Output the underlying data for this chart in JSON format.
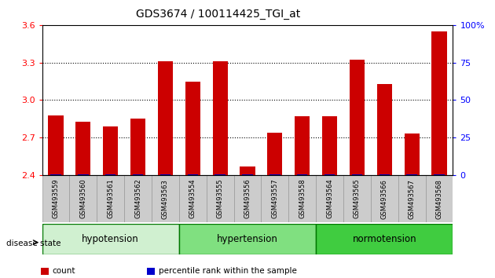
{
  "title": "GDS3674 / 100114425_TGI_at",
  "categories": [
    "GSM493559",
    "GSM493560",
    "GSM493561",
    "GSM493562",
    "GSM493563",
    "GSM493554",
    "GSM493555",
    "GSM493556",
    "GSM493557",
    "GSM493558",
    "GSM493564",
    "GSM493565",
    "GSM493566",
    "GSM493567",
    "GSM493568"
  ],
  "red_values": [
    2.88,
    2.83,
    2.79,
    2.85,
    3.31,
    3.15,
    3.31,
    2.47,
    2.74,
    2.87,
    2.87,
    3.32,
    3.13,
    2.73,
    3.55
  ],
  "blue_values": [
    0,
    0,
    0,
    0,
    0,
    0,
    0,
    0,
    0,
    0,
    0,
    0,
    0,
    0,
    0
  ],
  "ylim_left": [
    2.4,
    3.6
  ],
  "ylim_right": [
    0,
    100
  ],
  "yticks_left": [
    2.4,
    2.7,
    3.0,
    3.3,
    3.6
  ],
  "yticks_right": [
    0,
    25,
    50,
    75,
    100
  ],
  "ytick_labels_right": [
    "0",
    "25",
    "50",
    "75",
    "100%"
  ],
  "groups": [
    {
      "label": "hypotension",
      "start": 0,
      "end": 5,
      "color": "#d0f0d0"
    },
    {
      "label": "hypertension",
      "start": 5,
      "end": 10,
      "color": "#80e080"
    },
    {
      "label": "normotension",
      "start": 10,
      "end": 15,
      "color": "#40cc40"
    }
  ],
  "disease_state_label": "disease state",
  "legend_items": [
    {
      "color": "#cc0000",
      "label": "count"
    },
    {
      "color": "#0000cc",
      "label": "percentile rank within the sample"
    }
  ],
  "bar_color": "#cc0000",
  "blue_bar_color": "#0000bb",
  "tick_label_bg": "#cccccc",
  "tick_label_edgecolor": "#999999",
  "bar_width": 0.55,
  "dotted_lines": [
    2.7,
    3.0,
    3.3
  ],
  "title_fontsize": 10,
  "axis_fontsize": 8,
  "group_label_fontsize": 8.5,
  "cat_label_fontsize": 6
}
